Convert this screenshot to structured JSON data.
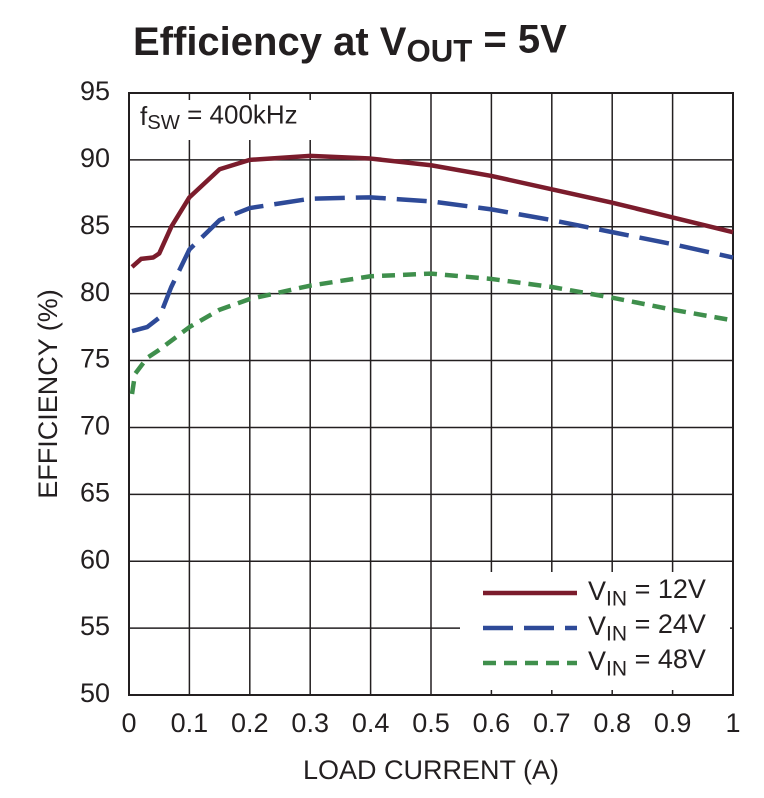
{
  "chart_data": {
    "type": "line",
    "title": [
      "Efficiency at V",
      "OUT",
      " = 5V"
    ],
    "annotation": [
      "f",
      "SW",
      " = 400kHz"
    ],
    "xlabel": "LOAD CURRENT (A)",
    "ylabel": "EFFICIENCY (%)",
    "xlim": [
      0,
      1
    ],
    "ylim": [
      50,
      95
    ],
    "xticks": [
      0,
      0.1,
      0.2,
      0.3,
      0.4,
      0.5,
      0.6,
      0.7,
      0.8,
      0.9,
      1
    ],
    "yticks": [
      50,
      55,
      60,
      65,
      70,
      75,
      80,
      85,
      90,
      95
    ],
    "grid": true,
    "legend": "lower right",
    "series": [
      {
        "name": [
          "V",
          "IN",
          " = 12V"
        ],
        "color": "#7b1c2c",
        "dash": "solid",
        "x": [
          0.005,
          0.02,
          0.04,
          0.05,
          0.07,
          0.1,
          0.15,
          0.2,
          0.3,
          0.4,
          0.5,
          0.6,
          0.7,
          0.8,
          0.9,
          1.0
        ],
        "values": [
          82.0,
          82.6,
          82.7,
          83.0,
          85.0,
          87.2,
          89.3,
          90.0,
          90.3,
          90.1,
          89.6,
          88.8,
          87.8,
          86.8,
          85.7,
          84.6
        ]
      },
      {
        "name": [
          "V",
          "IN",
          " = 24V"
        ],
        "color": "#2e4a98",
        "dash": "long",
        "x": [
          0.005,
          0.03,
          0.05,
          0.07,
          0.1,
          0.15,
          0.2,
          0.3,
          0.4,
          0.5,
          0.6,
          0.7,
          0.8,
          0.9,
          1.0
        ],
        "values": [
          77.2,
          77.5,
          78.2,
          80.5,
          83.3,
          85.5,
          86.4,
          87.1,
          87.2,
          86.9,
          86.3,
          85.5,
          84.6,
          83.7,
          82.7
        ]
      },
      {
        "name": [
          "V",
          "IN",
          " = 48V"
        ],
        "color": "#3f8f4c",
        "dash": "short",
        "x": [
          0.005,
          0.01,
          0.03,
          0.05,
          0.1,
          0.15,
          0.2,
          0.3,
          0.4,
          0.5,
          0.6,
          0.7,
          0.8,
          0.9,
          1.0
        ],
        "values": [
          72.5,
          74.0,
          75.2,
          75.8,
          77.5,
          78.8,
          79.6,
          80.6,
          81.3,
          81.5,
          81.1,
          80.5,
          79.7,
          78.8,
          78.0
        ]
      }
    ]
  }
}
